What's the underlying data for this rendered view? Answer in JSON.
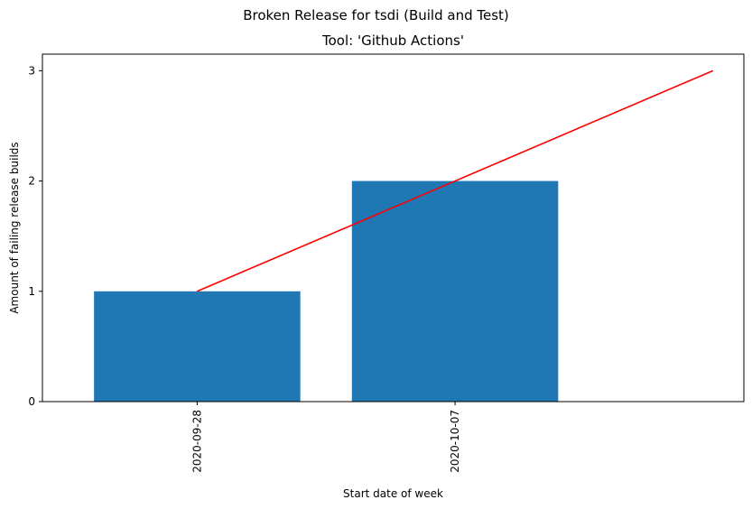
{
  "chart_data": {
    "type": "bar",
    "suptitle": "Broken Release for tsdi (Build and Test)",
    "title": "Tool: 'Github Actions'",
    "xlabel": "Start date of week",
    "ylabel": "Amount of failing release builds",
    "categories": [
      "2020-09-28",
      "2020-10-07"
    ],
    "values": [
      1,
      2
    ],
    "bar_color": "#1f77b4",
    "trend_line": {
      "color": "#ff0000",
      "x": [
        0,
        1,
        2
      ],
      "y": [
        1,
        2,
        3
      ]
    },
    "ylim": [
      0,
      3.15
    ],
    "yticks": [
      0,
      1,
      2,
      3
    ],
    "grid": false
  }
}
